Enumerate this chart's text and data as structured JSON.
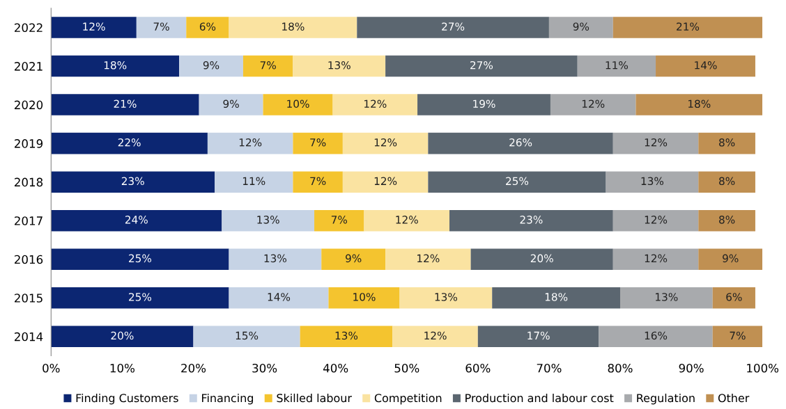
{
  "chart_data": {
    "type": "bar",
    "orientation": "horizontal",
    "stacked": true,
    "categories": [
      "2022",
      "2021",
      "2020",
      "2019",
      "2018",
      "2017",
      "2016",
      "2015",
      "2014"
    ],
    "series": [
      {
        "name": "Finding Customers",
        "color": "#0c2672",
        "values": [
          12,
          18,
          20.8,
          22,
          23,
          24,
          25,
          25,
          20
        ],
        "value_labels": [
          "12%",
          "18%",
          "21%",
          "22%",
          "23%",
          "24%",
          "25%",
          "25%",
          "20%"
        ]
      },
      {
        "name": "Financing",
        "color": "#c6d3e5",
        "values": [
          7,
          9,
          9.0,
          12,
          11,
          13,
          13,
          14,
          15
        ],
        "value_labels": [
          "7%",
          "9%",
          "9%",
          "12%",
          "11%",
          "13%",
          "13%",
          "14%",
          "15%"
        ]
      },
      {
        "name": "Skilled labour",
        "color": "#f4c42f",
        "values": [
          6,
          7,
          9.8,
          7,
          7,
          7,
          9,
          10,
          13
        ],
        "value_labels": [
          "6%",
          "7%",
          "10%",
          "7%",
          "7%",
          "7%",
          "9%",
          "10%",
          "13%"
        ]
      },
      {
        "name": "Competition",
        "color": "#fae3a1",
        "values": [
          18,
          13,
          11.9,
          12,
          12,
          12,
          12,
          13,
          12
        ],
        "value_labels": [
          "18%",
          "13%",
          "12%",
          "12%",
          "12%",
          "12%",
          "12%",
          "13%",
          "12%"
        ]
      },
      {
        "name": "Production and labour cost",
        "color": "#5b6670",
        "values": [
          27,
          27,
          18.7,
          26,
          25,
          23,
          20,
          18,
          17
        ],
        "value_labels": [
          "27%",
          "27%",
          "19%",
          "26%",
          "25%",
          "23%",
          "20%",
          "18%",
          "17%"
        ]
      },
      {
        "name": "Regulation",
        "color": "#a8aaad",
        "values": [
          9,
          11,
          12.0,
          12,
          13,
          12,
          12,
          13,
          16
        ],
        "value_labels": [
          "9%",
          "11%",
          "12%",
          "12%",
          "13%",
          "12%",
          "12%",
          "13%",
          "16%"
        ]
      },
      {
        "name": "Other",
        "color": "#c09052",
        "values": [
          21,
          14,
          17.8,
          8,
          8,
          8,
          9,
          6,
          7
        ],
        "value_labels": [
          "21%",
          "14%",
          "18%",
          "8%",
          "8%",
          "8%",
          "9%",
          "6%",
          "7%"
        ]
      }
    ],
    "xlim": [
      0,
      100
    ],
    "xticks": [
      {
        "value": 0,
        "label": "0%"
      },
      {
        "value": 10,
        "label": "10%"
      },
      {
        "value": 20,
        "label": "20%"
      },
      {
        "value": 30,
        "label": "30%"
      },
      {
        "value": 40,
        "label": "40%"
      },
      {
        "value": 50,
        "label": "50%"
      },
      {
        "value": 60,
        "label": "60%"
      },
      {
        "value": 70,
        "label": "70%"
      },
      {
        "value": 80,
        "label": "80%"
      },
      {
        "value": 90,
        "label": "90%"
      },
      {
        "value": 100,
        "label": "100%"
      }
    ],
    "grid": false,
    "legend": "bottom"
  }
}
